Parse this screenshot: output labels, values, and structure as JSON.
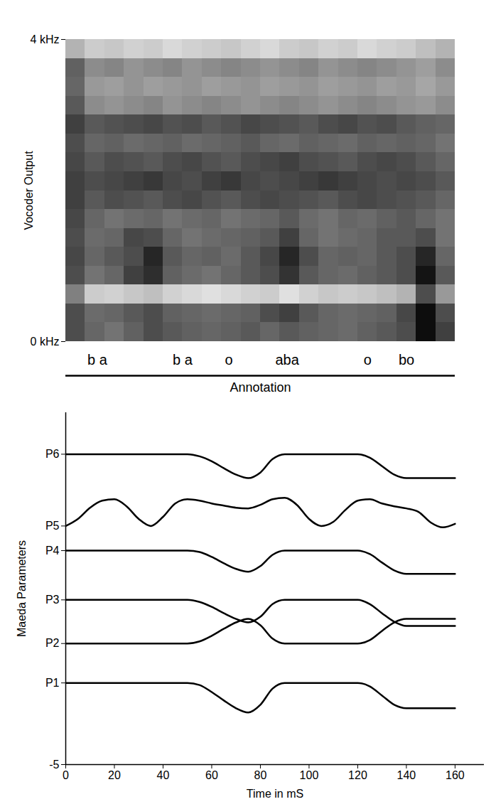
{
  "chart_data": [
    {
      "type": "heatmap",
      "ylabel": "Vocoder Output",
      "xlim": [
        0,
        160
      ],
      "ylim": [
        0,
        4
      ],
      "yticks": [
        {
          "value": 0,
          "label": "0 kHz"
        },
        {
          "value": 4,
          "label": "4 kHz"
        }
      ],
      "tick_labels": "y",
      "x_bins": [
        0,
        8,
        16,
        24,
        32,
        40,
        48,
        56,
        64,
        72,
        80,
        88,
        96,
        104,
        112,
        120,
        128,
        136,
        144,
        152,
        160
      ],
      "y_bins": [
        0,
        0.25,
        0.5,
        0.75,
        1,
        1.25,
        1.5,
        1.75,
        2,
        2.25,
        2.5,
        2.75,
        3,
        3.25,
        3.5,
        3.75,
        4
      ],
      "zlim": [
        0,
        100
      ],
      "cells": [
        [
          30,
          40,
          45,
          38,
          30,
          35,
          38,
          40,
          38,
          35,
          40,
          35,
          38,
          40,
          42,
          38,
          35,
          30,
          5,
          25
        ],
        [
          30,
          42,
          40,
          35,
          30,
          38,
          40,
          42,
          40,
          38,
          30,
          25,
          35,
          40,
          42,
          40,
          38,
          28,
          5,
          30
        ],
        [
          50,
          80,
          82,
          78,
          75,
          82,
          85,
          88,
          85,
          82,
          80,
          88,
          82,
          78,
          80,
          78,
          75,
          70,
          30,
          60
        ],
        [
          30,
          45,
          40,
          25,
          18,
          38,
          42,
          45,
          40,
          35,
          30,
          20,
          35,
          40,
          42,
          38,
          35,
          30,
          8,
          35
        ],
        [
          28,
          40,
          35,
          30,
          15,
          35,
          40,
          38,
          42,
          35,
          28,
          15,
          30,
          40,
          38,
          40,
          35,
          30,
          15,
          40
        ],
        [
          30,
          42,
          40,
          28,
          30,
          40,
          45,
          42,
          40,
          38,
          35,
          25,
          40,
          45,
          42,
          40,
          35,
          35,
          30,
          45
        ],
        [
          28,
          40,
          45,
          42,
          40,
          45,
          42,
          40,
          45,
          42,
          40,
          35,
          42,
          45,
          40,
          42,
          38,
          35,
          40,
          45
        ],
        [
          25,
          35,
          30,
          32,
          35,
          30,
          28,
          32,
          35,
          30,
          28,
          30,
          32,
          35,
          30,
          28,
          30,
          32,
          35,
          40
        ],
        [
          25,
          30,
          28,
          25,
          22,
          28,
          30,
          25,
          22,
          28,
          30,
          28,
          25,
          22,
          25,
          28,
          30,
          28,
          30,
          35
        ],
        [
          28,
          35,
          30,
          32,
          35,
          30,
          28,
          32,
          35,
          30,
          28,
          25,
          30,
          32,
          35,
          30,
          28,
          30,
          35,
          40
        ],
        [
          30,
          40,
          38,
          42,
          40,
          38,
          42,
          40,
          38,
          35,
          40,
          42,
          38,
          40,
          42,
          38,
          40,
          38,
          40,
          45
        ],
        [
          25,
          35,
          32,
          30,
          28,
          32,
          30,
          35,
          32,
          28,
          30,
          32,
          35,
          30,
          28,
          32,
          30,
          35,
          38,
          40
        ],
        [
          35,
          55,
          58,
          55,
          52,
          58,
          55,
          52,
          55,
          58,
          55,
          52,
          55,
          58,
          55,
          52,
          55,
          58,
          60,
          55
        ],
        [
          40,
          60,
          62,
          58,
          62,
          60,
          58,
          62,
          60,
          58,
          62,
          60,
          58,
          62,
          60,
          58,
          62,
          60,
          65,
          60
        ],
        [
          38,
          55,
          52,
          58,
          55,
          52,
          58,
          55,
          52,
          55,
          58,
          55,
          52,
          58,
          55,
          52,
          55,
          58,
          62,
          55
        ],
        [
          70,
          80,
          78,
          82,
          80,
          85,
          82,
          80,
          78,
          82,
          85,
          80,
          78,
          82,
          80,
          85,
          82,
          80,
          75,
          70
        ]
      ],
      "annotation_label": "Annotation",
      "annotations": [
        {
          "text": "b a",
          "x": 13
        },
        {
          "text": "b a",
          "x": 48
        },
        {
          "text": "o",
          "x": 67
        },
        {
          "text": "aba",
          "x": 91
        },
        {
          "text": "o",
          "x": 124
        },
        {
          "text": "bo",
          "x": 140
        }
      ]
    },
    {
      "type": "line",
      "xlabel": "Time in mS",
      "ylabel": "Maeda Parameters",
      "xlim": [
        0,
        172
      ],
      "ylim": [
        -5,
        45
      ],
      "xticks": [
        0,
        20,
        40,
        60,
        80,
        100,
        120,
        140,
        160
      ],
      "yticks": [
        -5,
        {
          "value": 6.6,
          "label": "P1"
        },
        {
          "value": 12.2,
          "label": "P2"
        },
        {
          "value": 18.4,
          "label": "P3"
        },
        {
          "value": 25.4,
          "label": "P4"
        },
        {
          "value": 28.9,
          "label": "P5"
        },
        {
          "value": 39.1,
          "label": "P6"
        }
      ],
      "x": [
        0,
        5,
        10,
        15,
        20,
        25,
        30,
        35,
        40,
        45,
        50,
        55,
        60,
        65,
        70,
        75,
        80,
        85,
        90,
        95,
        100,
        105,
        110,
        115,
        120,
        125,
        130,
        135,
        140,
        145,
        150,
        155,
        160
      ],
      "series": [
        {
          "color": "#000000",
          "values": [
            6.6,
            6.6,
            6.6,
            6.6,
            6.6,
            6.6,
            6.6,
            6.6,
            6.6,
            6.6,
            6.6,
            6.3,
            5.3,
            4.1,
            3.0,
            2.4,
            3.5,
            5.8,
            6.6,
            6.6,
            6.6,
            6.6,
            6.6,
            6.6,
            6.6,
            6.1,
            4.8,
            3.5,
            3.0,
            3.0,
            3.0,
            3.0,
            3.0
          ]
        },
        {
          "color": "#000000",
          "values": [
            12.2,
            12.2,
            12.2,
            12.2,
            12.2,
            12.2,
            12.2,
            12.2,
            12.2,
            12.2,
            12.2,
            12.5,
            13.3,
            14.3,
            15.2,
            15.7,
            14.8,
            12.9,
            12.2,
            12.2,
            12.2,
            12.2,
            12.2,
            12.2,
            12.2,
            12.7,
            14.0,
            15.2,
            15.7,
            15.7,
            15.7,
            15.7,
            15.7
          ]
        },
        {
          "color": "#000000",
          "values": [
            18.4,
            18.4,
            18.4,
            18.4,
            18.4,
            18.4,
            18.4,
            18.4,
            18.4,
            18.4,
            18.4,
            18.1,
            17.4,
            16.5,
            15.7,
            15.2,
            16.0,
            17.8,
            18.4,
            18.4,
            18.4,
            18.4,
            18.4,
            18.4,
            18.4,
            17.8,
            16.5,
            15.3,
            14.7,
            14.7,
            14.7,
            14.7,
            14.7
          ]
        },
        {
          "color": "#000000",
          "values": [
            25.4,
            25.4,
            25.4,
            25.4,
            25.4,
            25.4,
            25.4,
            25.4,
            25.4,
            25.4,
            25.4,
            25.2,
            24.5,
            23.6,
            22.8,
            22.4,
            23.2,
            24.8,
            25.4,
            25.4,
            25.4,
            25.4,
            25.4,
            25.4,
            25.4,
            24.9,
            23.7,
            22.6,
            22.1,
            22.1,
            22.1,
            22.1,
            22.1
          ]
        },
        {
          "color": "#000000",
          "values": [
            28.9,
            29.9,
            31.5,
            32.5,
            32.7,
            31.7,
            29.9,
            28.9,
            30.2,
            32.1,
            32.7,
            32.5,
            32.1,
            31.8,
            31.5,
            31.4,
            31.9,
            32.7,
            32.9,
            31.9,
            29.9,
            28.9,
            29.5,
            31.2,
            32.5,
            32.7,
            32.1,
            31.7,
            31.4,
            30.9,
            29.4,
            28.7,
            29.2
          ]
        },
        {
          "color": "#000000",
          "values": [
            39.1,
            39.1,
            39.1,
            39.1,
            39.1,
            39.1,
            39.1,
            39.1,
            39.1,
            39.1,
            39.1,
            38.8,
            38.1,
            37.1,
            36.2,
            35.7,
            36.5,
            38.4,
            39.1,
            39.1,
            39.1,
            39.1,
            39.1,
            39.1,
            39.1,
            38.6,
            37.4,
            36.2,
            35.7,
            35.7,
            35.7,
            35.7,
            35.7
          ]
        }
      ]
    }
  ]
}
